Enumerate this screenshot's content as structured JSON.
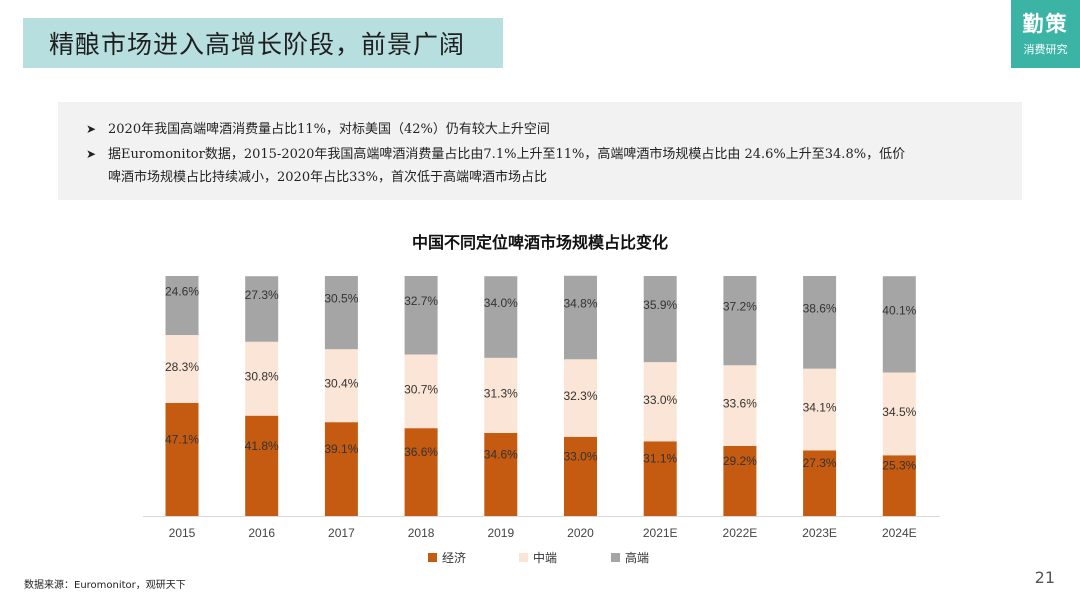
{
  "header": {
    "title": "精酿市场进入高增长阶段，前景广阔",
    "logo_main": "勤策",
    "logo_sub": "消费研究"
  },
  "summary": {
    "bullet_icon": "arrow-right-icon",
    "bullet1": "2020年我国高端啤酒消费量占比11%，对标美国（42%）仍有较大上升空间",
    "bullet2_line1": "据Euromonitor数据，2015-2020年我国高端啤酒消费量占比由7.1%上升至11%，高端啤酒市场规模占比由 24.6%上升至34.8%，低价",
    "bullet2_line2": "啤酒市场规模占比持续减小，2020年占比33%，首次低于高端啤酒市场占比"
  },
  "chart_data": {
    "type": "bar",
    "stacked": true,
    "title": "中国不同定位啤酒市场规模占比变化",
    "categories": [
      "2015",
      "2016",
      "2017",
      "2018",
      "2019",
      "2020",
      "2021E",
      "2022E",
      "2023E",
      "2024E"
    ],
    "series": [
      {
        "name": "经济",
        "color": "#c55a11",
        "values": [
          47.1,
          41.8,
          39.1,
          36.6,
          34.6,
          33.0,
          31.1,
          29.2,
          27.3,
          25.3
        ],
        "labels": [
          "47.1%",
          "41.8%",
          "39.1%",
          "36.6%",
          "34.6%",
          "33.0%",
          "31.1%",
          "29.2%",
          "27.3%",
          "25.3%"
        ]
      },
      {
        "name": "中端",
        "color": "#fbe5d6",
        "values": [
          28.3,
          30.8,
          30.4,
          30.7,
          31.3,
          32.3,
          33.0,
          33.6,
          34.1,
          34.5
        ],
        "labels": [
          "28.3%",
          "30.8%",
          "30.4%",
          "30.7%",
          "31.3%",
          "32.3%",
          "33.0%",
          "33.6%",
          "34.1%",
          "34.5%"
        ]
      },
      {
        "name": "高端",
        "color": "#a5a5a5",
        "values": [
          24.6,
          27.3,
          30.5,
          32.7,
          34.0,
          34.8,
          35.9,
          37.2,
          38.6,
          40.1
        ],
        "labels": [
          "24.6%",
          "27.3%",
          "30.5%",
          "32.7%",
          "34.0%",
          "34.8%",
          "35.9%",
          "37.2%",
          "38.6%",
          "40.1%"
        ]
      }
    ],
    "legend": "bottom",
    "grid": false
  },
  "footer": {
    "source": "数据来源：Euromonitor，观研天下",
    "page_number": "21"
  }
}
